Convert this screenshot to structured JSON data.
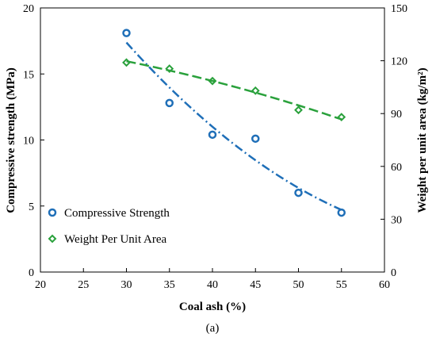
{
  "chart_data": {
    "type": "scatter",
    "xlabel": "Coal ash (%)",
    "ylabel_left": "Compressive strength (MPa)",
    "ylabel_right": "Weight per unit area (kg/m²)",
    "xlim": [
      20,
      60
    ],
    "ylim_left": [
      0,
      20
    ],
    "ylim_right": [
      0,
      150
    ],
    "x_ticks": [
      "20",
      "25",
      "30",
      "35",
      "40",
      "45",
      "50",
      "55",
      "60"
    ],
    "y_left_ticks": [
      "0",
      "5",
      "10",
      "15",
      "20"
    ],
    "y_right_ticks": [
      "0",
      "30",
      "60",
      "90",
      "120",
      "150"
    ],
    "grid": false,
    "legend_position": "bottom-left",
    "caption": "(a)",
    "series": [
      {
        "name": "Compressive Strength",
        "axis": "left",
        "color": "#1f6fb8",
        "marker": "circle",
        "trend": "dash-dot",
        "x": [
          30,
          35,
          40,
          45,
          50,
          55
        ],
        "y": [
          18.1,
          12.8,
          10.4,
          10.1,
          6.0,
          4.5
        ]
      },
      {
        "name": "Weight Per Unit Area",
        "axis": "right",
        "color": "#2aa13c",
        "marker": "diamond",
        "trend": "dashed",
        "x": [
          30,
          35,
          40,
          45,
          50,
          55
        ],
        "y": [
          119,
          115.5,
          108.5,
          103,
          92,
          88
        ]
      }
    ]
  }
}
